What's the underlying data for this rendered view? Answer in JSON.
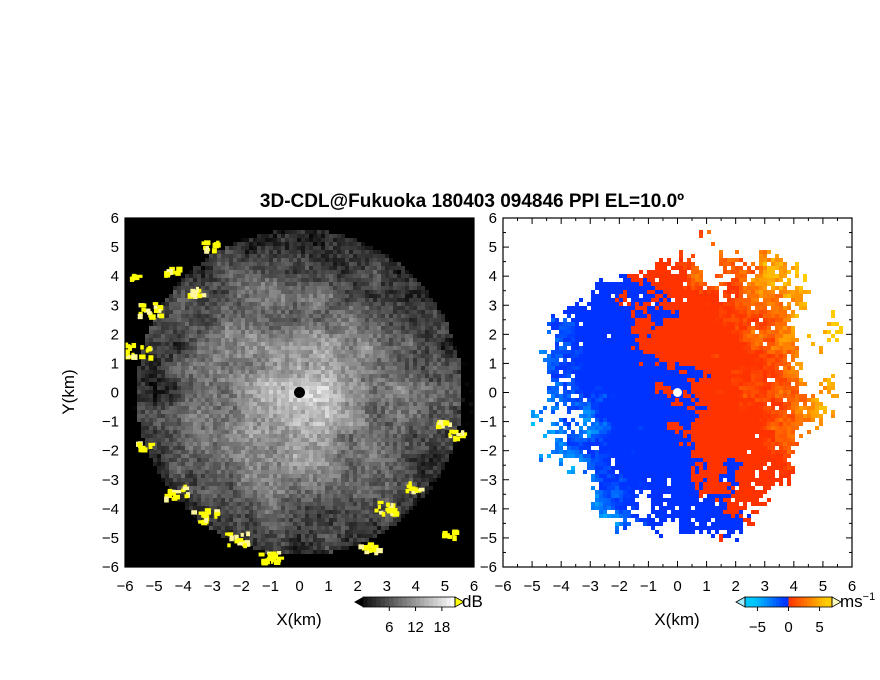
{
  "chart_data": {
    "title": "3D-CDL@Fukuoka 180403 094846 PPI EL=10.0º",
    "type": "heatmap",
    "panels": [
      {
        "name": "reflectivity-panel",
        "field": "backscatter",
        "xlabel": "X(km)",
        "ylabel": "Y(km)",
        "xlim": [
          -6,
          6
        ],
        "ylim": [
          -6,
          6
        ],
        "xticks": [
          "-6",
          "-5",
          "-4",
          "-3",
          "-2",
          "-1",
          "0",
          "1",
          "2",
          "3",
          "4",
          "5",
          "6"
        ],
        "yticks": [
          "-6",
          "-5",
          "-4",
          "-3",
          "-2",
          "-1",
          "0",
          "1",
          "2",
          "3",
          "4",
          "5",
          "6"
        ],
        "colormap": "gray",
        "colorbar": {
          "unit": "dB",
          "ticks": [
            "6",
            "12",
            "18"
          ],
          "range": [
            0,
            21
          ]
        },
        "saturated_color": "#ffff00",
        "background_color": "#000000"
      },
      {
        "name": "velocity-panel",
        "field": "doppler velocity",
        "xlabel": "X(km)",
        "ylabel": "",
        "xlim": [
          -6,
          6
        ],
        "ylim": [
          -6,
          6
        ],
        "xticks": [
          "-6",
          "-5",
          "-4",
          "-3",
          "-2",
          "-1",
          "0",
          "1",
          "2",
          "3",
          "4",
          "5",
          "6"
        ],
        "yticks": [
          "-6",
          "-5",
          "-4",
          "-3",
          "-2",
          "-1",
          "0",
          "1",
          "2",
          "3",
          "4",
          "5",
          "6"
        ],
        "colormap": "blue-red diverging",
        "colorbar": {
          "unit": "ms",
          "unit_exp": "−1",
          "ticks": [
            "−5",
            "0",
            "5"
          ],
          "range": [
            -7,
            7
          ]
        },
        "colors": {
          "neg_far": "#00c8ff",
          "neg": "#0033ff",
          "pos": "#ff3300",
          "pos_far": "#ffcc00"
        }
      }
    ]
  }
}
